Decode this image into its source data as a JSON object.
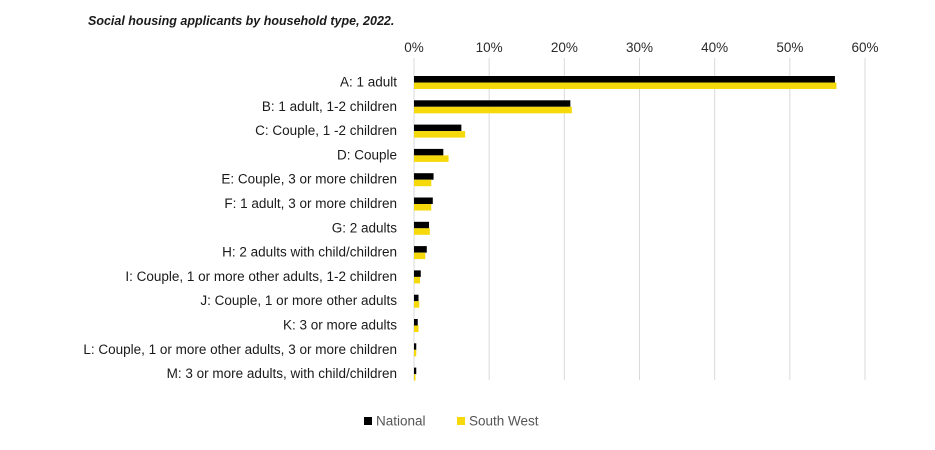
{
  "chart_data": {
    "type": "bar",
    "orientation": "horizontal",
    "title": "Social housing applicants by household type, 2022.",
    "xlabel": "",
    "ylabel": "",
    "x_axis_position": "top",
    "xlim": [
      0,
      60
    ],
    "x_ticks": [
      0,
      10,
      20,
      30,
      40,
      50,
      60
    ],
    "x_tick_labels": [
      "0%",
      "10%",
      "20%",
      "30%",
      "40%",
      "50%",
      "60%"
    ],
    "grid": true,
    "legend_position": "bottom-center",
    "categories": [
      "A: 1 adult",
      "B: 1 adult, 1-2 children",
      "C: Couple, 1 -2 children",
      "D: Couple",
      "E: Couple, 3 or more children",
      "F: 1 adult, 3 or more children",
      "G: 2 adults",
      "H: 2 adults with child/children",
      "I: Couple, 1 or more other adults, 1-2 children",
      "J: Couple, 1 or more other adults",
      "K: 3 or more adults",
      "L: Couple, 1 or more other adults, 3 or more children",
      "M: 3 or more adults, with child/children"
    ],
    "series": [
      {
        "name": "National",
        "color": "#000000",
        "values": [
          56.0,
          20.8,
          6.3,
          3.9,
          2.6,
          2.5,
          2.0,
          1.7,
          0.9,
          0.6,
          0.5,
          0.3,
          0.3
        ]
      },
      {
        "name": "South West",
        "color": "#f5d90a",
        "values": [
          56.2,
          21.0,
          6.8,
          4.6,
          2.3,
          2.3,
          2.1,
          1.5,
          0.8,
          0.7,
          0.6,
          0.3,
          0.2
        ]
      }
    ]
  }
}
